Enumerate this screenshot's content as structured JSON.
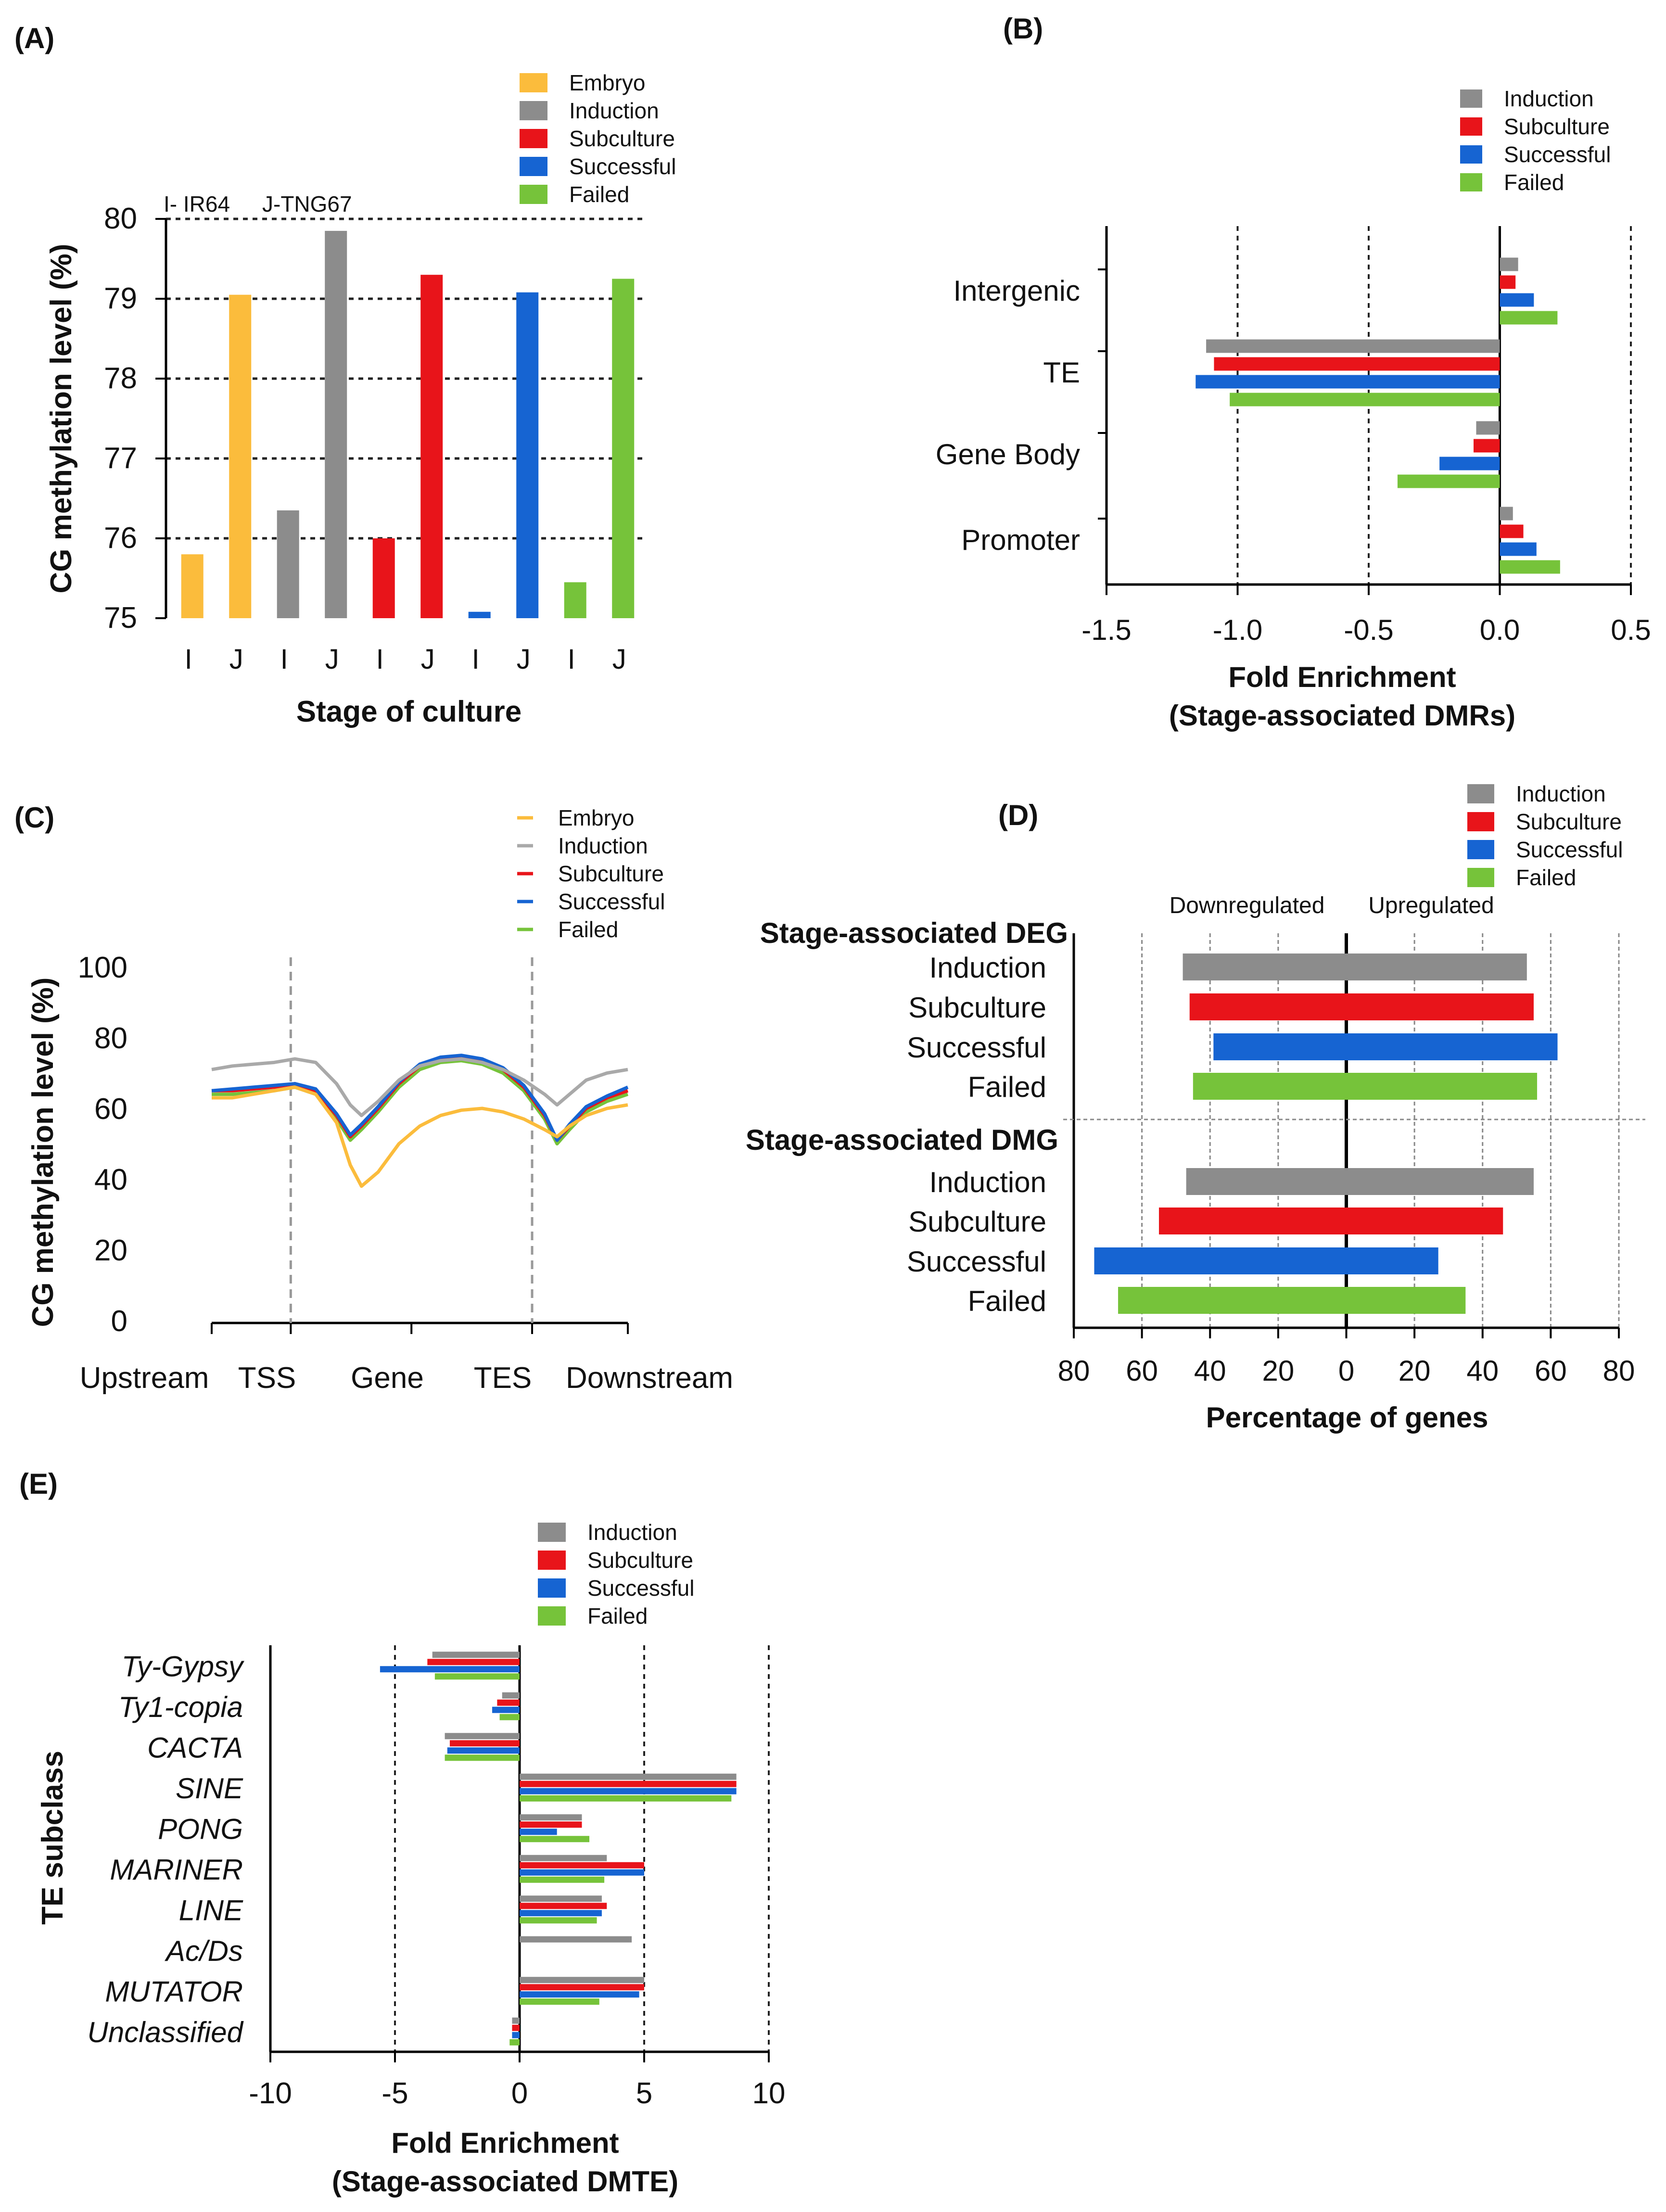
{
  "colors": {
    "embryo": "#fbbc3c",
    "induction": "#8c8c8c",
    "induction_light": "#a9a9a9",
    "subculture": "#e8141a",
    "successful": "#1664d2",
    "failed": "#76c33a",
    "axis": "#000000",
    "grid": "#888888"
  },
  "chart_data": [
    {
      "id": "A",
      "panel_label": "(A)",
      "type": "bar",
      "title": "",
      "xlabel": "Stage of culture",
      "ylabel": "CG methylation level (%)",
      "ylim": [
        75,
        80
      ],
      "yticks": [
        "75",
        "76",
        "77",
        "78",
        "79",
        "80"
      ],
      "legend": [
        "Embryo",
        "Induction",
        "Subculture",
        "Successful",
        "Failed"
      ],
      "annotations": [
        "I- IR64",
        "J-TNG67"
      ],
      "categories": [
        "I",
        "J",
        "I",
        "J",
        "I",
        "J",
        "I",
        "J",
        "I",
        "J"
      ],
      "series_index": [
        0,
        0,
        1,
        1,
        2,
        2,
        3,
        3,
        4,
        4
      ],
      "values": [
        75.8,
        79.05,
        76.35,
        79.85,
        76.0,
        79.3,
        75.08,
        79.08,
        75.45,
        79.25
      ]
    },
    {
      "id": "B",
      "panel_label": "(B)",
      "type": "bar",
      "orientation": "horizontal",
      "xlabel": "Fold Enrichment",
      "xlabel2": "(Stage-associated DMRs)",
      "xlim": [
        -1.5,
        0.5
      ],
      "xticks": [
        "-1.5",
        "-1.0",
        "-0.5",
        "0.0",
        "0.5"
      ],
      "legend": [
        "Induction",
        "Subculture",
        "Successful",
        "Failed"
      ],
      "categories": [
        "Intergenic",
        "TE",
        "Gene Body",
        "Promoter"
      ],
      "series": [
        {
          "name": "Induction",
          "values": [
            0.07,
            -1.12,
            -0.09,
            0.05
          ]
        },
        {
          "name": "Subculture",
          "values": [
            0.06,
            -1.09,
            -0.1,
            0.09
          ]
        },
        {
          "name": "Successful",
          "values": [
            0.13,
            -1.16,
            -0.23,
            0.14
          ]
        },
        {
          "name": "Failed",
          "values": [
            0.22,
            -1.03,
            -0.39,
            0.23
          ]
        }
      ]
    },
    {
      "id": "C",
      "panel_label": "(C)",
      "type": "line",
      "ylabel": "CG methylation level (%)",
      "ylim": [
        0,
        100
      ],
      "yticks": [
        "0",
        "20",
        "40",
        "60",
        "80",
        "100"
      ],
      "xticklabels": [
        "Upstream",
        "TSS",
        "Gene",
        "TES",
        "Downstream"
      ],
      "legend": [
        "Embryo",
        "Induction",
        "Subculture",
        "Successful",
        "Failed"
      ],
      "x": [
        0,
        0.05,
        0.1,
        0.15,
        0.2,
        0.25,
        0.3,
        0.333,
        0.36,
        0.4,
        0.45,
        0.5,
        0.55,
        0.6,
        0.65,
        0.7,
        0.75,
        0.8,
        0.83,
        0.86,
        0.9,
        0.95,
        1.0
      ],
      "series": [
        {
          "name": "Embryo",
          "values": [
            63,
            63,
            64,
            65,
            66,
            64,
            56,
            44,
            38,
            42,
            50,
            55,
            58,
            59.5,
            60,
            59,
            57,
            54,
            52,
            55,
            58,
            60,
            61
          ]
        },
        {
          "name": "Induction",
          "values": [
            71,
            72,
            72.5,
            73,
            74,
            73,
            67,
            61,
            58,
            62,
            68,
            72,
            73.5,
            74,
            73,
            71,
            68,
            64,
            61,
            64,
            68,
            70,
            71
          ]
        },
        {
          "name": "Subculture",
          "values": [
            65,
            65,
            65.5,
            66,
            67,
            65,
            58,
            52,
            55,
            60,
            67,
            72,
            74,
            74.5,
            73.5,
            71,
            66,
            58,
            51,
            55,
            60,
            63,
            65
          ]
        },
        {
          "name": "Successful",
          "values": [
            65,
            65.5,
            66,
            66.5,
            67,
            65.5,
            58.5,
            52.5,
            55.5,
            60.5,
            67.5,
            72.5,
            74.5,
            75,
            74,
            71.5,
            66.5,
            58.5,
            51,
            55.5,
            60.5,
            63.5,
            66
          ]
        },
        {
          "name": "Failed",
          "values": [
            64,
            64,
            64.5,
            65,
            66,
            64,
            57,
            51,
            54,
            59,
            66,
            71,
            73,
            73.5,
            72.5,
            70,
            65,
            57,
            50,
            54,
            59,
            62,
            64
          ]
        }
      ]
    },
    {
      "id": "D",
      "panel_label": "(D)",
      "type": "bar",
      "orientation": "horizontal",
      "xlabel": "Percentage of genes",
      "xlim": [
        -80,
        80
      ],
      "xticks": [
        "80",
        "60",
        "40",
        "20",
        "0",
        "20",
        "40",
        "60",
        "80"
      ],
      "legend": [
        "Induction",
        "Subculture",
        "Successful",
        "Failed"
      ],
      "side_labels": [
        "Downregulated",
        "Upregulated"
      ],
      "groups": [
        {
          "title": "Stage-associated DEG",
          "categories": [
            "Induction",
            "Subculture",
            "Successful",
            "Failed"
          ],
          "down": [
            48,
            46,
            39,
            45
          ],
          "up": [
            53,
            55,
            62,
            56
          ]
        },
        {
          "title": "Stage-associated DMG",
          "categories": [
            "Induction",
            "Subculture",
            "Successful",
            "Failed"
          ],
          "down": [
            47,
            55,
            74,
            67
          ],
          "up": [
            55,
            46,
            27,
            35
          ]
        }
      ]
    },
    {
      "id": "E",
      "panel_label": "(E)",
      "type": "bar",
      "orientation": "horizontal",
      "xlabel": "Fold Enrichment",
      "xlabel2": "(Stage-associated DMTE)",
      "ylabel": "TE subclass",
      "xlim": [
        -10,
        10
      ],
      "xticks": [
        "-10",
        "-5",
        "0",
        "5",
        "10"
      ],
      "legend": [
        "Induction",
        "Subculture",
        "Successful",
        "Failed"
      ],
      "categories": [
        "Ty-Gypsy",
        "Ty1-copia",
        "CACTA",
        "SINE",
        "PONG",
        "MARINER",
        "LINE",
        "Ac/Ds",
        "MUTATOR",
        "Unclassified"
      ],
      "series": [
        {
          "name": "Induction",
          "values": [
            -3.5,
            -0.7,
            -3.0,
            8.7,
            2.5,
            3.5,
            3.3,
            4.5,
            5.0,
            -0.3
          ]
        },
        {
          "name": "Subculture",
          "values": [
            -3.7,
            -0.9,
            -2.8,
            8.7,
            2.5,
            5.0,
            3.5,
            0,
            5.0,
            -0.3
          ]
        },
        {
          "name": "Successful",
          "values": [
            -5.6,
            -1.1,
            -2.9,
            8.7,
            1.5,
            5.0,
            3.3,
            0,
            4.8,
            -0.3
          ]
        },
        {
          "name": "Failed",
          "values": [
            -3.4,
            -0.8,
            -3.0,
            8.5,
            2.8,
            3.4,
            3.1,
            0,
            3.2,
            -0.4
          ]
        }
      ]
    }
  ]
}
